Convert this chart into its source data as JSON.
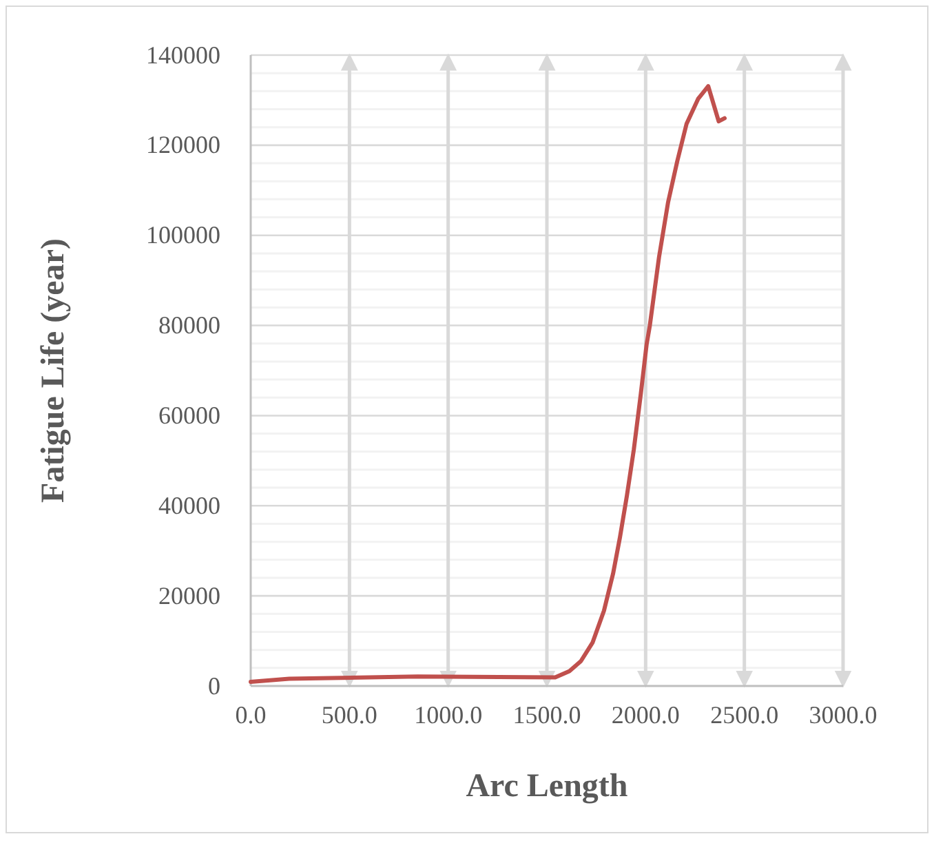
{
  "chart_data": {
    "type": "line",
    "xlabel": "Arc Length",
    "ylabel": "Fatigue Life (year)",
    "x": [
      0,
      195,
      845,
      1542,
      1614,
      1672,
      1731,
      1789,
      1835,
      1870,
      1905,
      1940,
      1975,
      2005,
      2021,
      2068,
      2114,
      2161,
      2207,
      2266,
      2317,
      2370,
      2400
    ],
    "series": [
      {
        "color": "#c0504d",
        "values": [
          900,
          1600,
          2100,
          1900,
          3300,
          5500,
          9600,
          16700,
          24900,
          33000,
          42200,
          52400,
          64600,
          75800,
          79900,
          95200,
          107400,
          116600,
          124700,
          130300,
          133100,
          125300,
          126000
        ]
      }
    ],
    "xlim": [
      0,
      3000
    ],
    "xticks": [
      {
        "value": 0,
        "label": "0.0"
      },
      {
        "value": 500,
        "label": "500.0"
      },
      {
        "value": 1000,
        "label": "1000.0"
      },
      {
        "value": 1500,
        "label": "1500.0"
      },
      {
        "value": 2000,
        "label": "2000.0"
      },
      {
        "value": 2500,
        "label": "2500.0"
      },
      {
        "value": 3000,
        "label": "3000.0"
      }
    ],
    "ylim": [
      0,
      140000
    ],
    "yticks": [
      0,
      {
        "value": 4000,
        "label": null
      },
      {
        "value": 8000,
        "label": null
      },
      {
        "value": 12000,
        "label": null
      },
      {
        "value": 16000,
        "label": null
      },
      20000,
      {
        "value": 24000,
        "label": null
      },
      {
        "value": 28000,
        "label": null
      },
      {
        "value": 32000,
        "label": null
      },
      {
        "value": 36000,
        "label": null
      },
      40000,
      {
        "value": 44000,
        "label": null
      },
      {
        "value": 48000,
        "label": null
      },
      {
        "value": 52000,
        "label": null
      },
      {
        "value": 56000,
        "label": null
      },
      60000,
      {
        "value": 64000,
        "label": null
      },
      {
        "value": 68000,
        "label": null
      },
      {
        "value": 72000,
        "label": null
      },
      {
        "value": 76000,
        "label": null
      },
      80000,
      {
        "value": 84000,
        "label": null
      },
      {
        "value": 88000,
        "label": null
      },
      {
        "value": 92000,
        "label": null
      },
      {
        "value": 96000,
        "label": null
      },
      100000,
      {
        "value": 104000,
        "label": null
      },
      {
        "value": 108000,
        "label": null
      },
      {
        "value": 112000,
        "label": null
      },
      {
        "value": 116000,
        "label": null
      },
      120000,
      {
        "value": 124000,
        "label": null
      },
      {
        "value": 128000,
        "label": null
      },
      {
        "value": 132000,
        "label": null
      },
      {
        "value": 136000,
        "label": null
      },
      140000
    ],
    "grid": true,
    "marker": "none",
    "line_style": "solid"
  }
}
